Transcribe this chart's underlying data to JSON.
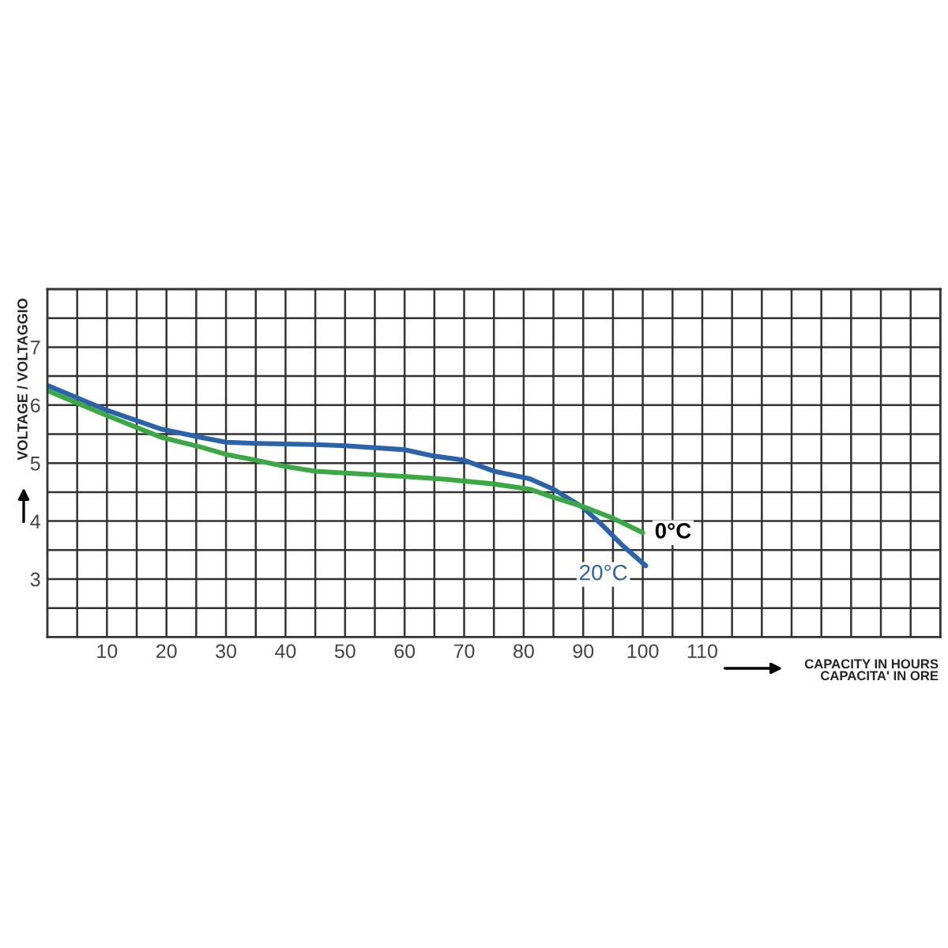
{
  "chart_data": {
    "type": "line",
    "xlabel": "CAPACITY IN HOURS\nCAPACITA' IN ORE",
    "ylabel": "VOLTAGE / VOLTAGGIO",
    "xlim": [
      0,
      150
    ],
    "ylim": [
      2,
      8
    ],
    "xticks": [
      {
        "value": 5,
        "label": null
      },
      10,
      {
        "value": 15,
        "label": null
      },
      20,
      {
        "value": 25,
        "label": null
      },
      30,
      {
        "value": 35,
        "label": null
      },
      40,
      {
        "value": 45,
        "label": null
      },
      50,
      {
        "value": 55,
        "label": null
      },
      60,
      {
        "value": 65,
        "label": null
      },
      70,
      {
        "value": 75,
        "label": null
      },
      80,
      {
        "value": 85,
        "label": null
      },
      90,
      {
        "value": 95,
        "label": null
      },
      100,
      {
        "value": 105,
        "label": null
      },
      110,
      {
        "value": 115,
        "label": null
      },
      {
        "value": 120,
        "label": null
      },
      {
        "value": 125,
        "label": null
      },
      {
        "value": 130,
        "label": null
      },
      {
        "value": 135,
        "label": null
      },
      {
        "value": 140,
        "label": null
      },
      {
        "value": 145,
        "label": null
      }
    ],
    "yticks": [
      {
        "value": 2.5,
        "label": null
      },
      3,
      {
        "value": 3.5,
        "label": null
      },
      4,
      {
        "value": 4.5,
        "label": null
      },
      5,
      {
        "value": 5.5,
        "label": null
      },
      6,
      {
        "value": 6.5,
        "label": null
      },
      7,
      {
        "value": 7.5,
        "label": null
      }
    ],
    "grid": true,
    "legend": false,
    "series": [
      {
        "name": "20°C",
        "color": "#2a62ab",
        "x": [
          0,
          10,
          19,
          26,
          30,
          35,
          45,
          50,
          60,
          65,
          70,
          75,
          81,
          85,
          90,
          93,
          96.5,
          100.5
        ],
        "values": [
          6.34,
          5.91,
          5.59,
          5.44,
          5.36,
          5.34,
          5.32,
          5.3,
          5.23,
          5.12,
          5.05,
          4.86,
          4.73,
          4.55,
          4.23,
          3.95,
          3.59,
          3.23
        ]
      },
      {
        "name": "0°C",
        "color": "#3aa843",
        "x": [
          0,
          10,
          19,
          26,
          30,
          35,
          40,
          45,
          50,
          60,
          67,
          75,
          81,
          85,
          90,
          95,
          100
        ],
        "values": [
          6.25,
          5.82,
          5.45,
          5.27,
          5.15,
          5.05,
          4.94,
          4.86,
          4.83,
          4.77,
          4.72,
          4.64,
          4.55,
          4.41,
          4.25,
          4.05,
          3.8
        ]
      }
    ]
  }
}
